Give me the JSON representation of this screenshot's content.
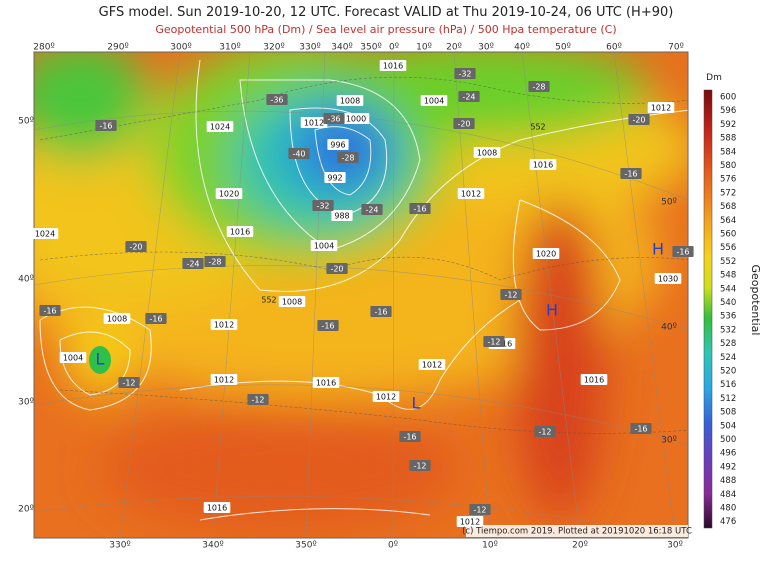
{
  "header": {
    "title": "GFS model. Sun 2019-10-20, 12 UTC. Forecast VALID at Thu 2019-10-24, 06 UTC (H+90)",
    "subtitle": "Geopotential 500 hPa (Dm) / Sea level air pressure (hPa) / 500 Hpa temperature (C)"
  },
  "colorbar": {
    "unit": "Dm",
    "label": "Geopotential",
    "values": [
      "600",
      "596",
      "592",
      "588",
      "584",
      "580",
      "576",
      "572",
      "568",
      "564",
      "560",
      "556",
      "552",
      "548",
      "544",
      "540",
      "536",
      "532",
      "528",
      "524",
      "520",
      "516",
      "512",
      "508",
      "504",
      "500",
      "496",
      "492",
      "488",
      "484",
      "480",
      "476"
    ]
  },
  "map": {
    "lon_top": [
      "280º",
      "290º",
      "300º",
      "310º",
      "320º",
      "330º",
      "340º",
      "350º",
      "0º",
      "10º",
      "20º",
      "30º",
      "40º",
      "50º",
      "60º",
      "70º"
    ],
    "lon_bottom": [
      "330º",
      "340º",
      "350º",
      "0º",
      "10º",
      "20º",
      "30º"
    ],
    "lat_left": [
      "50º",
      "40º",
      "30º",
      "20º"
    ],
    "lat_right": [
      "50º",
      "40º",
      "30º"
    ],
    "isobar_labels": [
      "1016",
      "1008",
      "1004",
      "1000",
      "1012",
      "1024",
      "996",
      "992",
      "988",
      "1020",
      "1016",
      "1004",
      "1024",
      "1008",
      "1012",
      "1008",
      "1004",
      "1012",
      "1016",
      "1012",
      "1012",
      "1008",
      "1016",
      "1012",
      "1020",
      "1016",
      "1016",
      "1030",
      "1012",
      "1016",
      "1012"
    ],
    "geopotential_labels": [
      "552",
      "552"
    ],
    "temperature_labels": [
      "-32",
      "-28",
      "-24",
      "-36",
      "-36",
      "-16",
      "-20",
      "-20",
      "-40",
      "-28",
      "-32",
      "-24",
      "-16",
      "-16",
      "-20",
      "-24",
      "-28",
      "-20",
      "-16",
      "-12",
      "-16",
      "-16",
      "-16",
      "-16",
      "-12",
      "-12",
      "-12",
      "-16",
      "-12",
      "-16",
      "-12",
      "-12"
    ],
    "highs": [
      "H",
      "H"
    ],
    "lows": [
      "L",
      "L"
    ],
    "credit": "(c) Tiempo.com 2019. Plotted at 20191020 16:18 UTC"
  }
}
